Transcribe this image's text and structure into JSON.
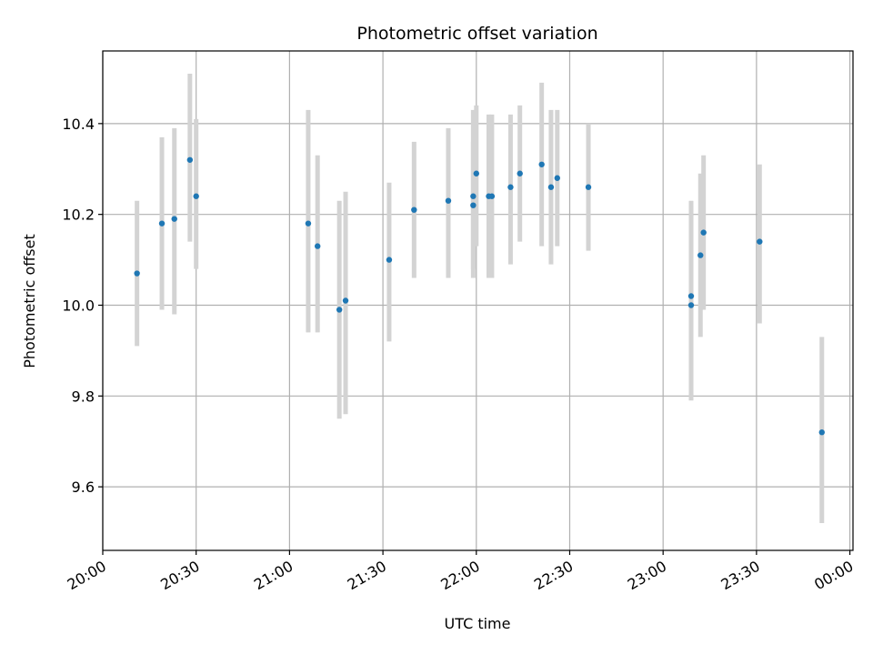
{
  "chart_data": {
    "type": "scatter",
    "title": "Photometric offset variation",
    "xlabel": "UTC time",
    "ylabel": "Photometric offset",
    "x_ticks": [
      "20:00",
      "20:30",
      "21:00",
      "21:30",
      "22:00",
      "22:30",
      "23:00",
      "23:30",
      "00:00"
    ],
    "y_ticks": [
      "9.6",
      "9.8",
      "10.0",
      "10.2",
      "10.4"
    ],
    "xlim": [
      "20:00",
      "00:01"
    ],
    "ylim": [
      9.46,
      10.56
    ],
    "grid": true,
    "colors": {
      "point": "#1f77b4",
      "errorbar": "#d3d3d3",
      "grid": "#b0b0b0"
    },
    "points": [
      {
        "t": "20:11",
        "y": 10.07,
        "lo": 9.91,
        "hi": 10.23
      },
      {
        "t": "20:19",
        "y": 10.18,
        "lo": 9.99,
        "hi": 10.37
      },
      {
        "t": "20:23",
        "y": 10.19,
        "lo": 9.98,
        "hi": 10.39
      },
      {
        "t": "20:28",
        "y": 10.32,
        "lo": 10.14,
        "hi": 10.51
      },
      {
        "t": "20:30",
        "y": 10.24,
        "lo": 10.08,
        "hi": 10.41
      },
      {
        "t": "21:06",
        "y": 10.18,
        "lo": 9.94,
        "hi": 10.43
      },
      {
        "t": "21:09",
        "y": 10.13,
        "lo": 9.94,
        "hi": 10.33
      },
      {
        "t": "21:16",
        "y": 9.99,
        "lo": 9.75,
        "hi": 10.23
      },
      {
        "t": "21:18",
        "y": 10.01,
        "lo": 9.76,
        "hi": 10.25
      },
      {
        "t": "21:32",
        "y": 10.1,
        "lo": 9.92,
        "hi": 10.27
      },
      {
        "t": "21:40",
        "y": 10.21,
        "lo": 10.06,
        "hi": 10.36
      },
      {
        "t": "21:51",
        "y": 10.23,
        "lo": 10.06,
        "hi": 10.39
      },
      {
        "t": "21:59",
        "y": 10.24,
        "lo": 10.06,
        "hi": 10.43
      },
      {
        "t": "21:59",
        "y": 10.22,
        "lo": 10.08,
        "hi": 10.36
      },
      {
        "t": "22:00",
        "y": 10.29,
        "lo": 10.13,
        "hi": 10.44
      },
      {
        "t": "22:04",
        "y": 10.24,
        "lo": 10.06,
        "hi": 10.42
      },
      {
        "t": "22:05",
        "y": 10.24,
        "lo": 10.06,
        "hi": 10.42
      },
      {
        "t": "22:11",
        "y": 10.26,
        "lo": 10.09,
        "hi": 10.42
      },
      {
        "t": "22:14",
        "y": 10.29,
        "lo": 10.14,
        "hi": 10.44
      },
      {
        "t": "22:21",
        "y": 10.31,
        "lo": 10.13,
        "hi": 10.49
      },
      {
        "t": "22:24",
        "y": 10.26,
        "lo": 10.09,
        "hi": 10.43
      },
      {
        "t": "22:26",
        "y": 10.28,
        "lo": 10.13,
        "hi": 10.43
      },
      {
        "t": "22:36",
        "y": 10.26,
        "lo": 10.12,
        "hi": 10.4
      },
      {
        "t": "23:09",
        "y": 10.02,
        "lo": 9.8,
        "hi": 10.23
      },
      {
        "t": "23:09",
        "y": 10.0,
        "lo": 9.79,
        "hi": 10.22
      },
      {
        "t": "23:12",
        "y": 10.11,
        "lo": 9.93,
        "hi": 10.29
      },
      {
        "t": "23:13",
        "y": 10.16,
        "lo": 9.99,
        "hi": 10.33
      },
      {
        "t": "23:31",
        "y": 10.14,
        "lo": 9.96,
        "hi": 10.31
      },
      {
        "t": "23:51",
        "y": 9.72,
        "lo": 9.52,
        "hi": 9.93
      }
    ]
  }
}
